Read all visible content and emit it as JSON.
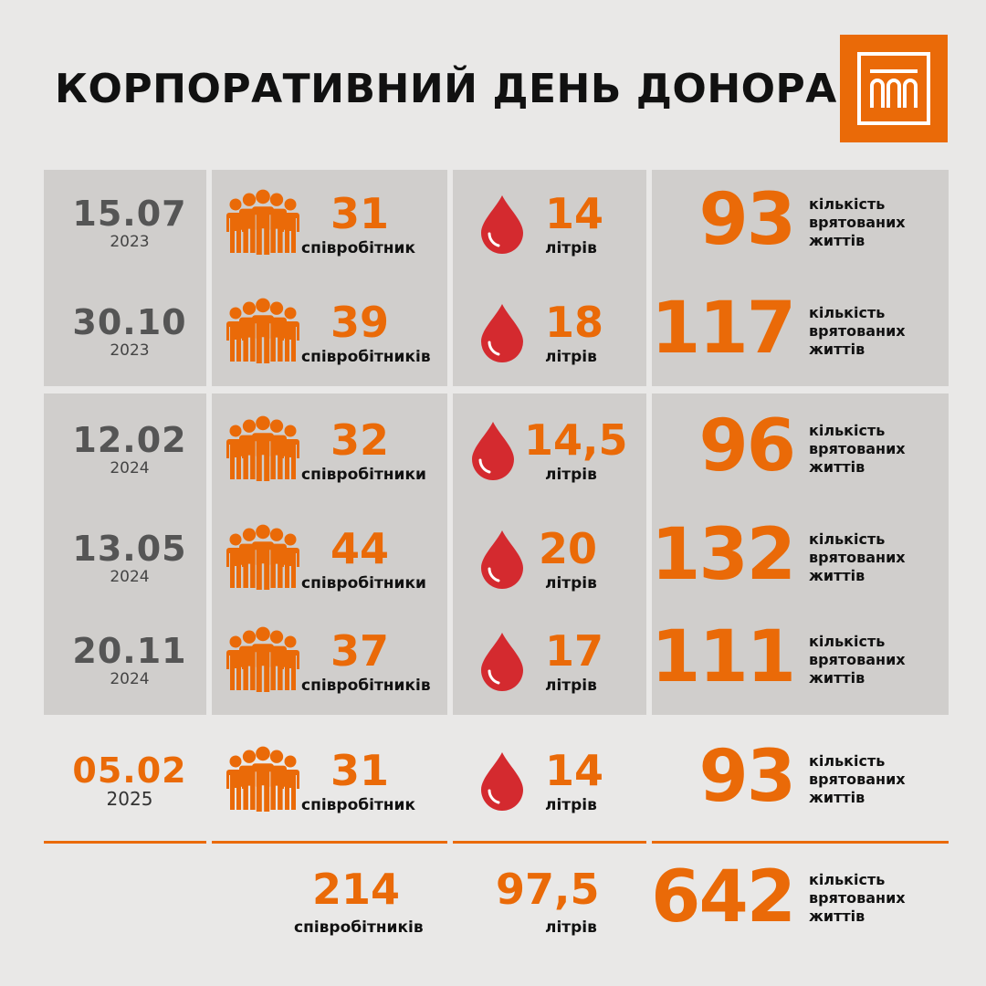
{
  "title": "КОРПОРАТИВНИЙ ДЕНЬ ДОНОРА",
  "colors": {
    "accent": "#ea6a08",
    "drop": "#d42a2f",
    "panel": "#d0cecc",
    "background": "#e9e8e7"
  },
  "icons": {
    "people": "people-group-icon",
    "blood": "blood-drop-icon",
    "logo": "bank-building-logo"
  },
  "lives_label": [
    "кількість",
    "врятованих",
    "життів"
  ],
  "liters_label": "літрів",
  "rows": [
    {
      "date": "15.07",
      "year": "2023",
      "people": "31",
      "people_label": "співробітник",
      "liters": "14",
      "lives": "93"
    },
    {
      "date": "30.10",
      "year": "2023",
      "people": "39",
      "people_label": "співробітників",
      "liters": "18",
      "lives": "117"
    },
    {
      "date": "12.02",
      "year": "2024",
      "people": "32",
      "people_label": "співробітники",
      "liters": "14,5",
      "lives": "96"
    },
    {
      "date": "13.05",
      "year": "2024",
      "people": "44",
      "people_label": "співробітники",
      "liters": "20",
      "lives": "132"
    },
    {
      "date": "20.11",
      "year": "2024",
      "people": "37",
      "people_label": "співробітників",
      "liters": "17",
      "lives": "111"
    },
    {
      "date": "05.02",
      "year": "2025",
      "people": "31",
      "people_label": "співробітник",
      "liters": "14",
      "lives": "93"
    }
  ],
  "totals": {
    "people": "214",
    "people_label": "співробітників",
    "liters": "97,5",
    "lives": "642"
  }
}
